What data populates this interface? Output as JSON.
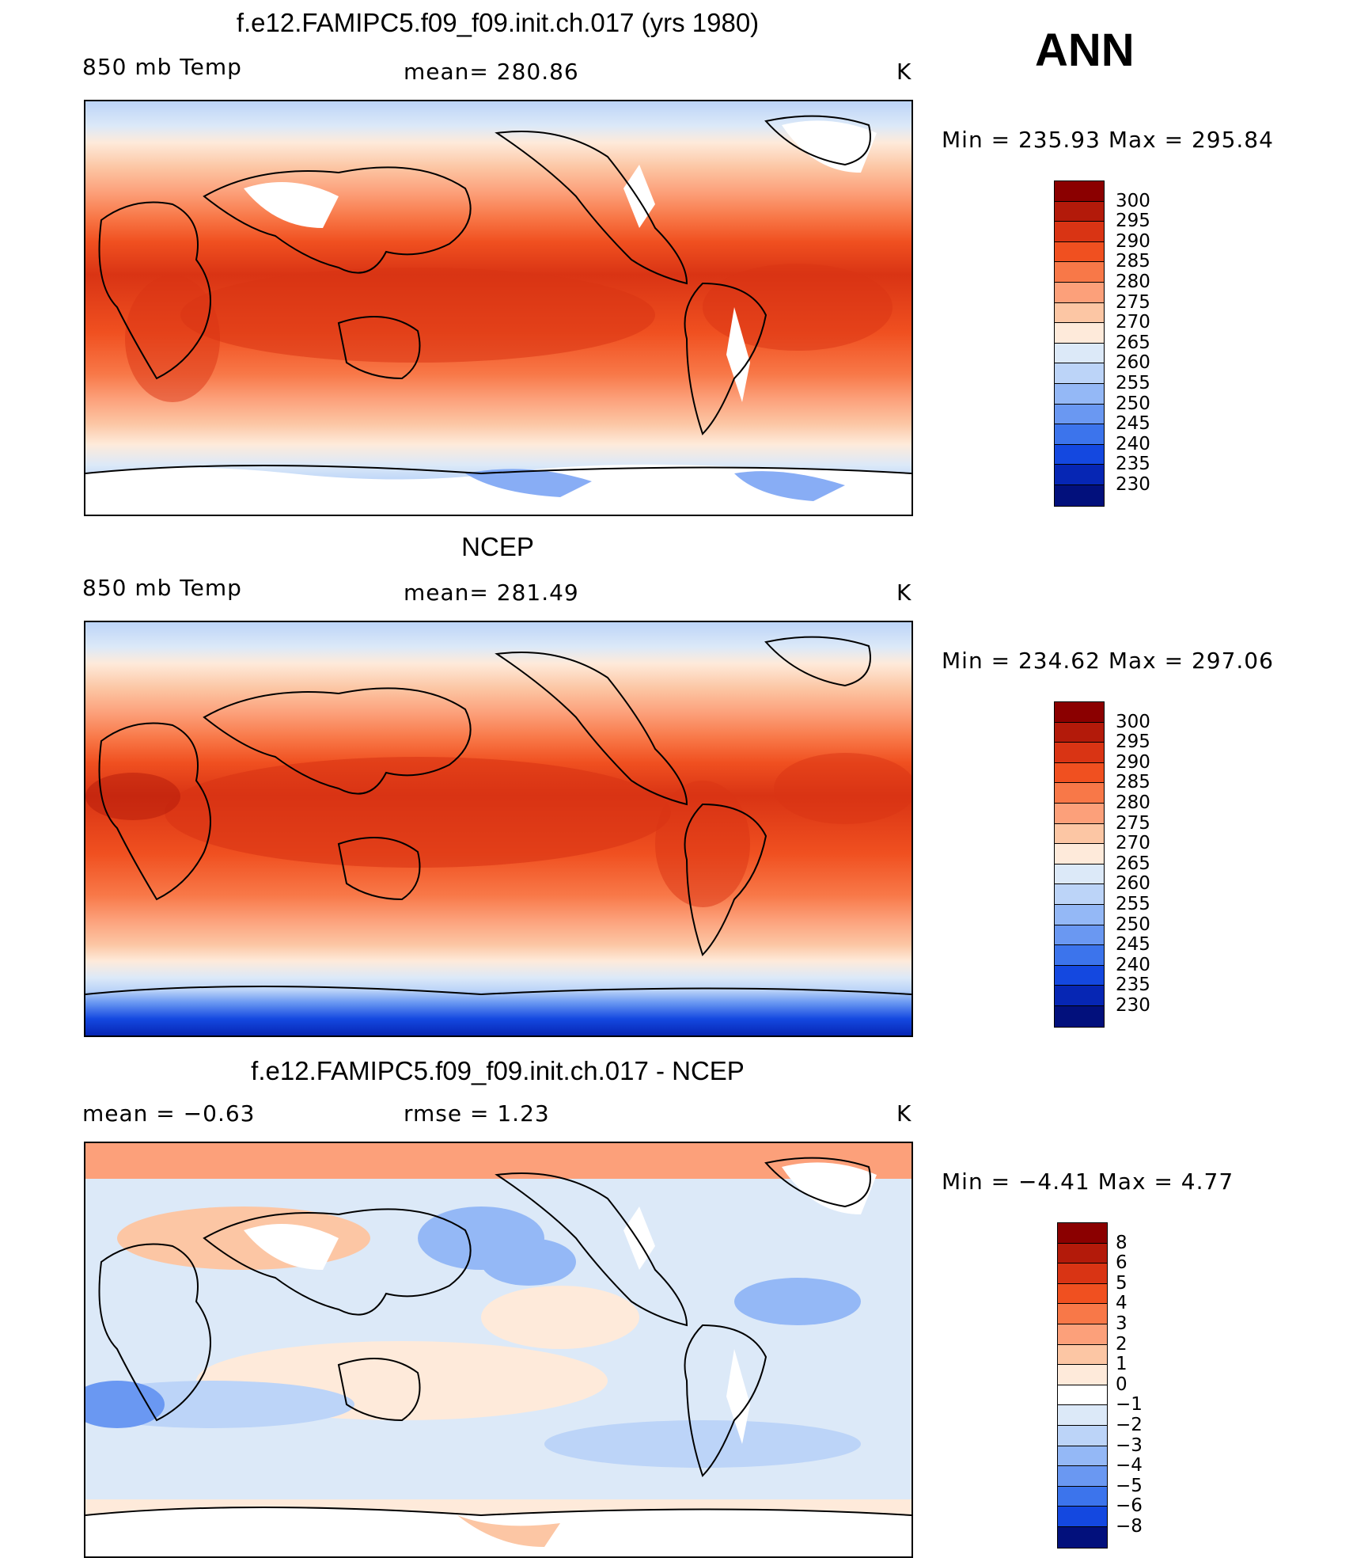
{
  "season": "ANN",
  "panels": [
    {
      "id": "model",
      "title": "f.e12.FAMIPC5.f09_f09.init.ch.017 (yrs 1980)",
      "left_label": "850 mb Temp",
      "center_label": "mean=  280.86",
      "units": "K",
      "minmax": "Min  =  235.93  Max  =  295.84",
      "colorbar": {
        "levels": [
          "300",
          "295",
          "290",
          "285",
          "280",
          "275",
          "270",
          "265",
          "260",
          "255",
          "250",
          "245",
          "240",
          "235",
          "230"
        ],
        "colors": [
          "#8b0000",
          "#b31a0a",
          "#d93414",
          "#f05020",
          "#f87848",
          "#fca07a",
          "#fcc6a4",
          "#feeada",
          "#dce9f8",
          "#bcd4f8",
          "#94b8f6",
          "#6a98f2",
          "#3c74ec",
          "#1448e0",
          "#0626b4",
          "#02107c"
        ]
      }
    },
    {
      "id": "obs",
      "title": "NCEP",
      "left_label": "850 mb Temp",
      "center_label": "mean=  281.49",
      "units": "K",
      "minmax": "Min  =  234.62  Max  =  297.06",
      "colorbar": {
        "levels": [
          "300",
          "295",
          "290",
          "285",
          "280",
          "275",
          "270",
          "265",
          "260",
          "255",
          "250",
          "245",
          "240",
          "235",
          "230"
        ],
        "colors": [
          "#8b0000",
          "#b31a0a",
          "#d93414",
          "#f05020",
          "#f87848",
          "#fca07a",
          "#fcc6a4",
          "#feeada",
          "#dce9f8",
          "#bcd4f8",
          "#94b8f6",
          "#6a98f2",
          "#3c74ec",
          "#1448e0",
          "#0626b4",
          "#02107c"
        ]
      }
    },
    {
      "id": "diff",
      "title": "f.e12.FAMIPC5.f09_f09.init.ch.017 - NCEP",
      "left_label": "mean =    −0.63",
      "center_label": "rmse =     1.23",
      "units": "K",
      "minmax": "Min  =    −4.41  Max  =      4.77",
      "colorbar": {
        "levels": [
          "8",
          "6",
          "5",
          "4",
          "3",
          "2",
          "1",
          "0",
          "−1",
          "−2",
          "−3",
          "−4",
          "−5",
          "−6",
          "−8"
        ],
        "colors": [
          "#8b0000",
          "#b31a0a",
          "#d93414",
          "#f05020",
          "#f87848",
          "#fca07a",
          "#fcc6a4",
          "#feeada",
          "#ffffff",
          "#dce9f8",
          "#bcd4f8",
          "#94b8f6",
          "#6a98f2",
          "#3c74ec",
          "#1448e0",
          "#02107c"
        ]
      }
    }
  ]
}
